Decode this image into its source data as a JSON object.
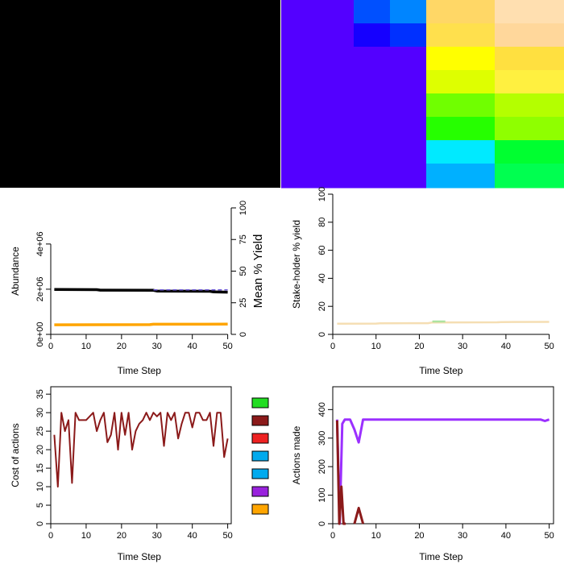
{
  "chart_data": [
    {
      "type": "heatmap",
      "panel": "top-left",
      "description_color": "#000000",
      "cells": [
        [
          "#000000"
        ]
      ]
    },
    {
      "type": "heatmap",
      "panel": "top-right",
      "columns": [
        [
          "#5300ff",
          "#5300ff",
          "#5300ff",
          "#5300ff",
          "#5300ff",
          "#5300ff",
          "#5300ff",
          "#5300ff"
        ],
        [
          "#5300ff",
          "#5300ff",
          "#5300ff",
          "#5300ff",
          "#5300ff",
          "#5300ff",
          "#5300ff",
          "#5300ff"
        ],
        [
          "#0050ff",
          "#1500ff",
          "#5300ff",
          "#5300ff",
          "#5300ff",
          "#5300ff",
          "#5300ff",
          "#5300ff"
        ],
        [
          "#0085ff",
          "#0030ff",
          "#5300ff",
          "#5300ff",
          "#5300ff",
          "#5300ff",
          "#5300ff",
          "#5300ff"
        ],
        [
          "#ffd766",
          "#ffe04d",
          "#ffff00",
          "#deff00",
          "#70ff00",
          "#26ff00",
          "#00eaff",
          "#00b0ff"
        ],
        [
          "#ffdfb0",
          "#ffd79b",
          "#ffe040",
          "#fff040",
          "#b4ff00",
          "#8fff00",
          "#00ff30",
          "#00ff50"
        ]
      ]
    },
    {
      "type": "line",
      "panel": "middle-left",
      "xlabel": "Time Step",
      "ylabel": "Abundance",
      "y2label": "Mean % Yield",
      "xlim": [
        0,
        51
      ],
      "ylim": [
        0,
        5600000
      ],
      "y2lim": [
        0,
        100
      ],
      "xticks": [
        "0",
        "10",
        "20",
        "30",
        "40",
        "50"
      ],
      "yticks": [
        "0e+00",
        "2e+06",
        "4e+06"
      ],
      "y2ticks": [
        "0",
        "25",
        "50",
        "75",
        "100"
      ],
      "series": [
        {
          "color": "#000000",
          "axis": "left",
          "x": [
            1,
            13,
            14,
            29,
            30,
            45,
            46,
            50
          ],
          "values": [
            1990000,
            1980000,
            1960000,
            1950000,
            1920000,
            1910000,
            1880000,
            1870000
          ]
        },
        {
          "color": "#6f5bd6",
          "dash": true,
          "axis": "right",
          "x": [
            29,
            50
          ],
          "values": [
            35.2,
            35.2
          ]
        },
        {
          "color": "#ffa500",
          "axis": "right",
          "x": [
            1,
            28,
            29,
            50
          ],
          "values": [
            7.6,
            7.7,
            8.0,
            8.1
          ]
        }
      ]
    },
    {
      "type": "line",
      "panel": "middle-right",
      "xlabel": "Time Step",
      "ylabel": "Stake-holder % yield",
      "xlim": [
        0,
        51
      ],
      "ylim": [
        0,
        100
      ],
      "xticks": [
        "0",
        "10",
        "20",
        "30",
        "40",
        "50"
      ],
      "yticks": [
        "0",
        "20",
        "40",
        "60",
        "80",
        "100"
      ],
      "series": [
        {
          "color": "#f5deb3",
          "x": [
            1,
            10,
            11,
            22,
            23,
            38,
            39,
            50
          ],
          "values": [
            7.6,
            7.7,
            7.9,
            8.0,
            8.5,
            8.6,
            8.8,
            8.9
          ]
        },
        {
          "color": "#aee3a0",
          "x": [
            23,
            26
          ],
          "values": [
            9.2,
            9.2
          ]
        }
      ]
    },
    {
      "type": "line",
      "panel": "bottom-left",
      "xlabel": "Time Step",
      "ylabel": "Cost of actions",
      "xlim": [
        0,
        51
      ],
      "ylim": [
        0,
        37
      ],
      "xticks": [
        "0",
        "10",
        "20",
        "30",
        "40",
        "50"
      ],
      "yticks": [
        "0",
        "5",
        "10",
        "15",
        "20",
        "25",
        "30",
        "35"
      ],
      "series": [
        {
          "color": "#8b1a1a",
          "x": [
            1,
            2,
            3,
            4,
            5,
            6,
            7,
            8,
            9,
            10,
            11,
            12,
            13,
            14,
            15,
            16,
            17,
            18,
            19,
            20,
            21,
            22,
            23,
            24,
            25,
            26,
            27,
            28,
            29,
            30,
            31,
            32,
            33,
            34,
            35,
            36,
            37,
            38,
            39,
            40,
            41,
            42,
            43,
            44,
            45,
            46,
            47,
            48,
            49,
            50
          ],
          "values": [
            24,
            10,
            30,
            25,
            28,
            11,
            30,
            28,
            28,
            28,
            29,
            30,
            25,
            28,
            30,
            22,
            24,
            30,
            20,
            30,
            24,
            30,
            20,
            25,
            27,
            28,
            30,
            28,
            30,
            29,
            30,
            21,
            30,
            28,
            30,
            23,
            27,
            30,
            30,
            26,
            30,
            30,
            28,
            28,
            30,
            21,
            30,
            30,
            18,
            23
          ]
        }
      ]
    },
    {
      "type": "legend",
      "panel": "bottom-middle",
      "swatches": [
        "#22dd22",
        "#8b1a1a",
        "#ee2222",
        "#00aaee",
        "#00aaee",
        "#9922dd",
        "#ffa500"
      ]
    },
    {
      "type": "line",
      "panel": "bottom-right",
      "xlabel": "Time Step",
      "ylabel": "Actions made",
      "xlim": [
        0,
        51
      ],
      "ylim": [
        0,
        480
      ],
      "xticks": [
        "0",
        "10",
        "20",
        "30",
        "40",
        "50"
      ],
      "yticks": [
        "0",
        "100",
        "200",
        "300",
        "400"
      ],
      "series": [
        {
          "color": "#9b30ff",
          "x": [
            1,
            1.6,
            2.2,
            2.8,
            4,
            5,
            6,
            7,
            8,
            48,
            49,
            50
          ],
          "values": [
            365,
            0,
            350,
            365,
            365,
            330,
            285,
            365,
            365,
            365,
            360,
            365
          ]
        },
        {
          "color": "#8b1a1a",
          "x": [
            1,
            1.5,
            2,
            2.5,
            3
          ],
          "values": [
            362,
            0,
            130,
            0,
            0
          ]
        },
        {
          "color": "#8b1a1a",
          "x": [
            5,
            6,
            7
          ],
          "values": [
            0,
            55,
            0
          ]
        }
      ]
    }
  ]
}
